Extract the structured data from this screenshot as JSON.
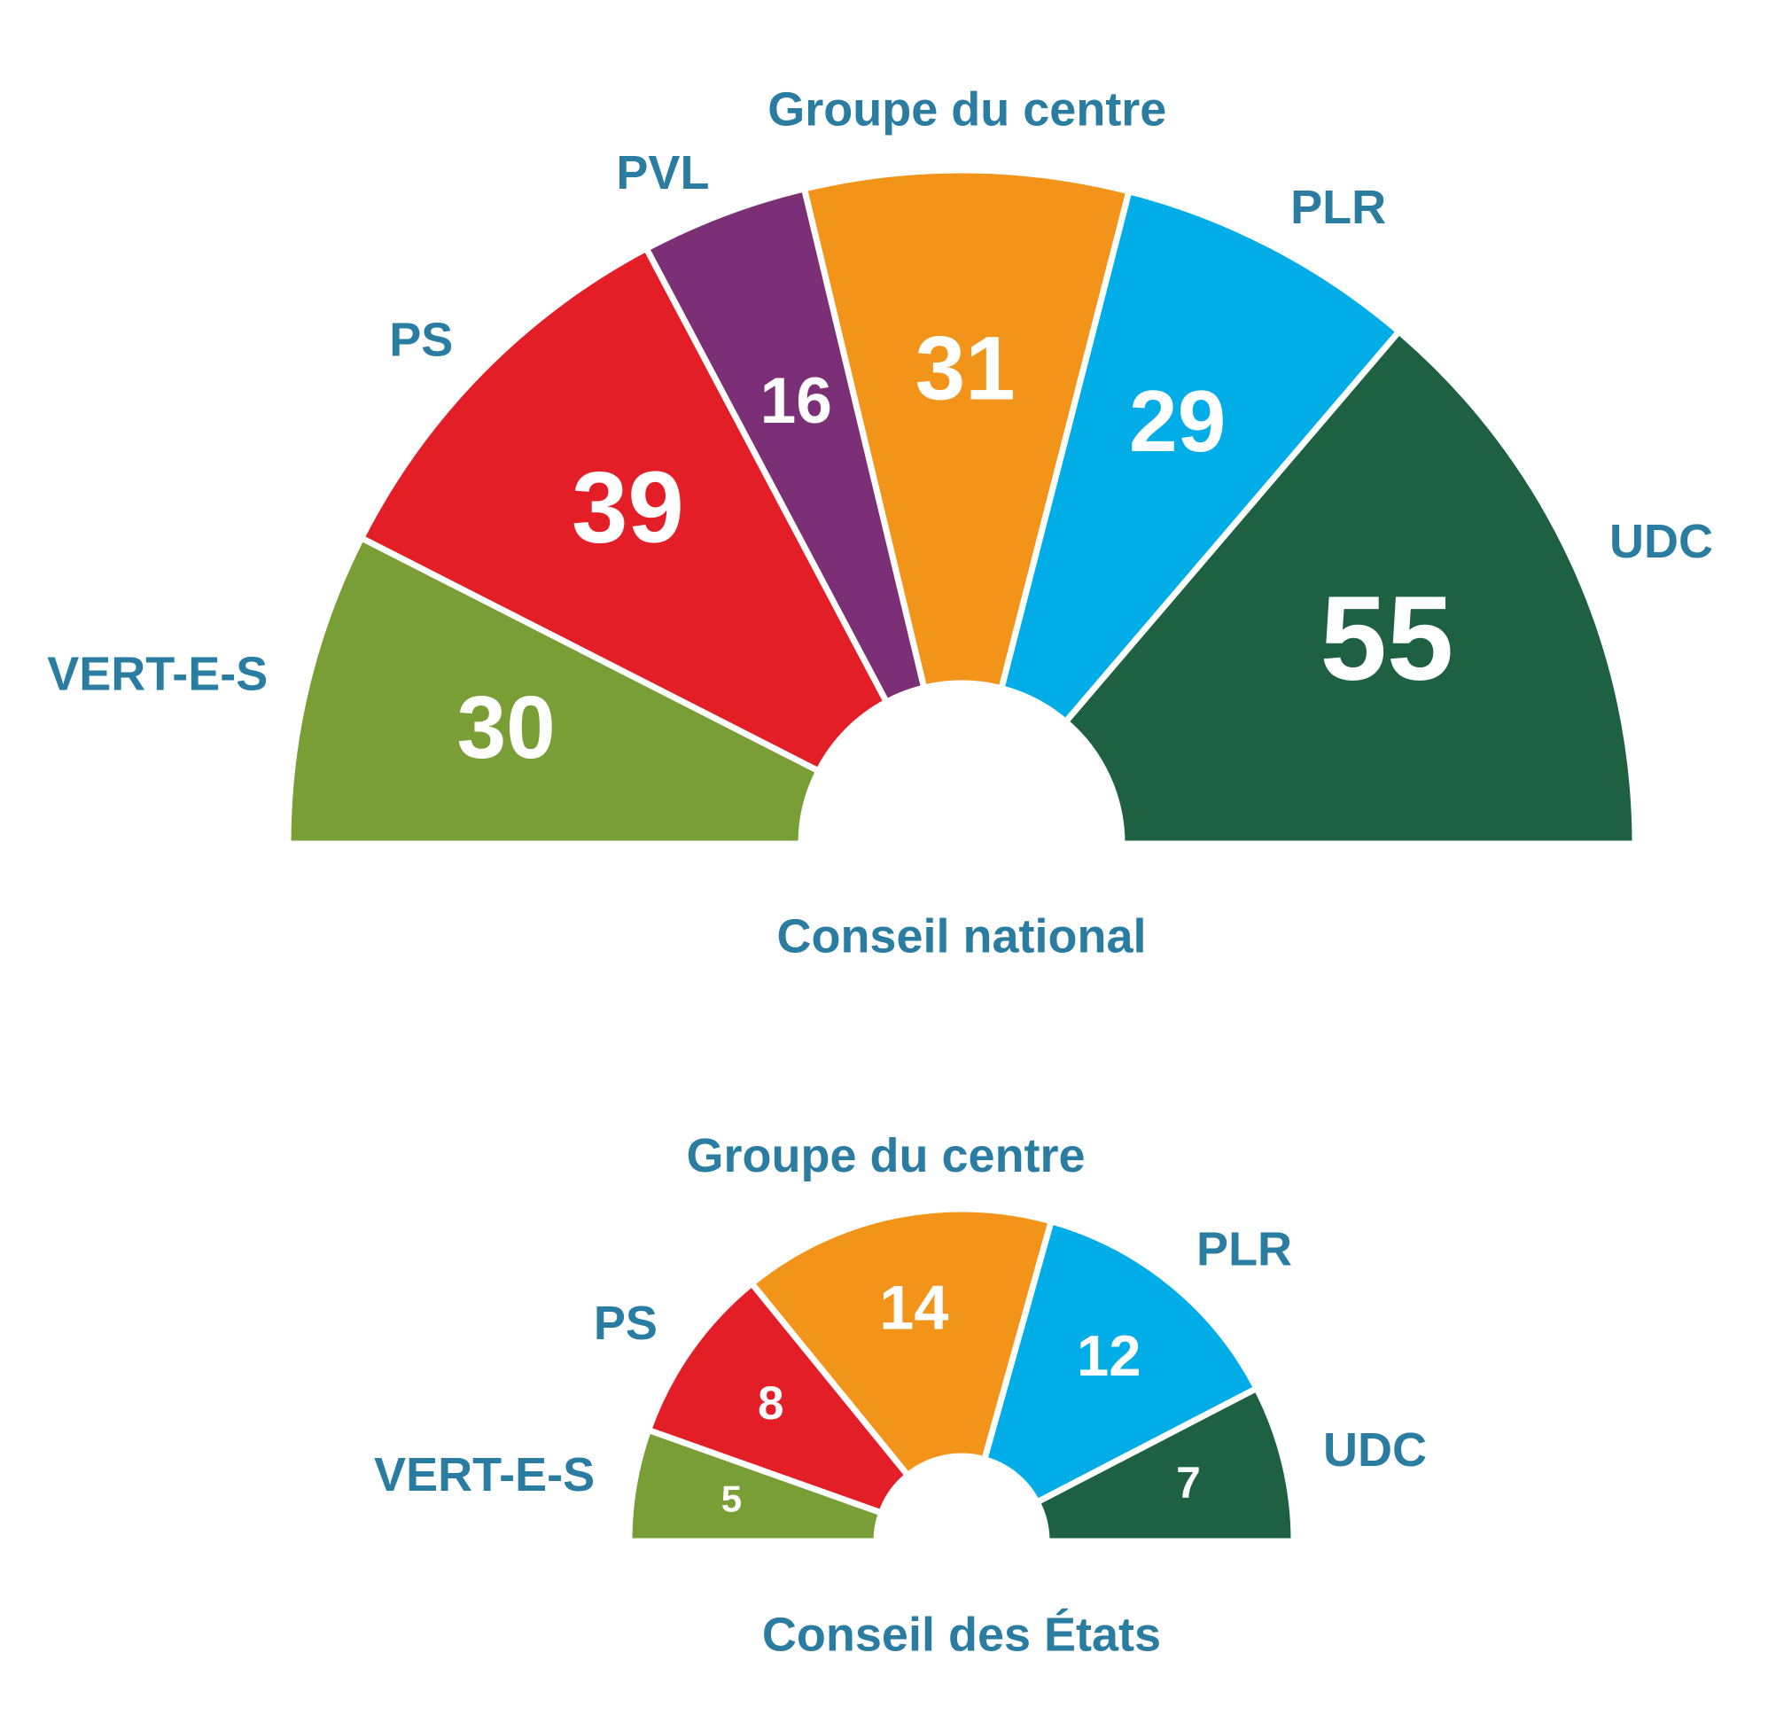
{
  "chart_data": [
    {
      "type": "donut",
      "title": "Conseil national",
      "categories": [
        "VERT-E-S",
        "PS",
        "PVL",
        "Groupe du centre",
        "PLR",
        "UDC"
      ],
      "values": [
        30,
        39,
        16,
        31,
        29,
        55
      ],
      "colors": [
        "#7a9e36",
        "#e31e26",
        "#7b2f77",
        "#f29419",
        "#00ade6",
        "#1e6142"
      ]
    },
    {
      "type": "donut",
      "title": "Conseil des États",
      "categories": [
        "VERT-E-S",
        "PS",
        "Groupe du centre",
        "PLR",
        "UDC"
      ],
      "values": [
        5,
        8,
        14,
        12,
        7
      ],
      "colors": [
        "#7a9e36",
        "#e31e26",
        "#f29419",
        "#00ade6",
        "#1e6142"
      ]
    }
  ]
}
